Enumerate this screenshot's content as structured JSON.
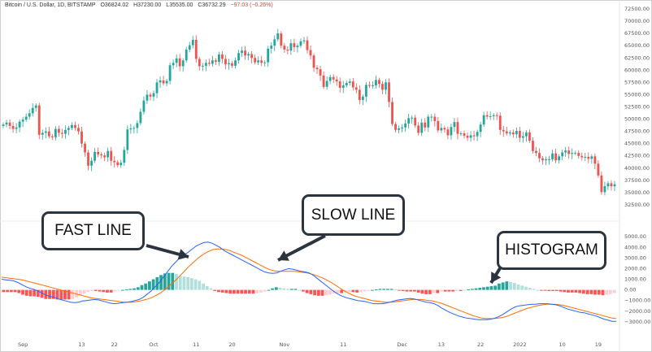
{
  "header": {
    "symbol": "Bitcoin / U.S. Dollar, 1D, BITSTAMP",
    "open": "O36824.02",
    "high": "H37230.00",
    "low": "L35535.00",
    "close": "C36732.29",
    "change": "−97.03 (−0.26%)"
  },
  "callouts": {
    "fast": "FAST LINE",
    "slow": "SLOW LINE",
    "hist": "HISTOGRAM"
  },
  "colors": {
    "up": "#26a69a",
    "down": "#ef5350",
    "hist_up_strong": "#26a69a",
    "hist_up_weak": "#b2dfdb",
    "hist_down_strong": "#ff5252",
    "hist_down_weak": "#ffcdd2",
    "fast_line": "#2962ff",
    "slow_line": "#ff6d00"
  },
  "chart_data": [
    {
      "type": "candlestick",
      "title": "",
      "x_tick_labels": [
        "Sep",
        "13",
        "22",
        "Oct",
        "11",
        "20",
        "Nov",
        "11",
        "Dec",
        "13",
        "22",
        "2022",
        "10",
        "19"
      ],
      "y_tick_labels": [
        "32500.00",
        "35000.00",
        "37500.00",
        "40000.00",
        "42500.00",
        "45000.00",
        "47500.00",
        "50000.00",
        "52500.00",
        "55000.00",
        "57500.00",
        "60000.00",
        "62500.00",
        "65000.00",
        "67500.00",
        "70000.00",
        "72500.00"
      ],
      "ylim": [
        31500,
        73000
      ],
      "close": [
        48900,
        49300,
        48600,
        48000,
        48300,
        49500,
        49900,
        50500,
        51200,
        52300,
        52800,
        46800,
        47200,
        47500,
        46500,
        46300,
        48000,
        47200,
        47000,
        47800,
        48200,
        48800,
        48200,
        47500,
        45000,
        43200,
        40500,
        41500,
        43300,
        42800,
        42600,
        42200,
        43500,
        41500,
        41200,
        40600,
        41100,
        43700,
        47900,
        48100,
        48200,
        49200,
        51500,
        53800,
        55000,
        54600,
        55300,
        57500,
        57900,
        57300,
        57800,
        61000,
        61500,
        62400,
        60800,
        62000,
        64200,
        65100,
        66200,
        62300,
        60800,
        60900,
        61500,
        61300,
        62000,
        61700,
        63200,
        62300,
        61200,
        61400,
        60900,
        62000,
        63500,
        64000,
        63000,
        63300,
        62500,
        61600,
        62000,
        61500,
        61600,
        64400,
        65000,
        66300,
        67500,
        65000,
        64200,
        64000,
        65500,
        64700,
        65000,
        65900,
        66100,
        64100,
        63000,
        60500,
        60200,
        58900,
        56600,
        57800,
        58600,
        58100,
        57700,
        56400,
        56900,
        57400,
        57700,
        56500,
        56000,
        53900,
        54600,
        57000,
        56800,
        56900,
        58000,
        57200,
        56000,
        57500,
        53500,
        49000,
        47800,
        48100,
        48300,
        49100,
        50200,
        50300,
        48700,
        47200,
        49300,
        48300,
        50500,
        50500,
        49600,
        47700,
        48200,
        47900,
        46700,
        48400,
        49400,
        47000,
        47100,
        46600,
        46200,
        46700,
        46500,
        47400,
        48900,
        50800,
        50500,
        50600,
        50800,
        50700,
        47800,
        47500,
        47100,
        47300,
        46900,
        47600,
        46200,
        46500,
        47300,
        45600,
        43500,
        43100,
        42000,
        41600,
        41800,
        41800,
        43000,
        41600,
        42400,
        43200,
        43600,
        42900,
        43100,
        43100,
        42500,
        42200,
        42300,
        41900,
        42400,
        40900,
        38500,
        35100,
        36300,
        36900,
        36300,
        36700
      ]
    },
    {
      "type": "line",
      "title": "",
      "y_tick_labels": [
        "5000.00",
        "4000.00",
        "3000.00",
        "2000.00",
        "1000.00",
        "0.00",
        "−1000.00",
        "−2000.00",
        "−3000.00"
      ],
      "ylim": [
        -3700,
        5400
      ],
      "series": [
        {
          "values": [
            1000,
            950,
            900,
            850,
            700,
            500,
            300,
            150,
            50,
            -100,
            -300,
            -500,
            -600,
            -700,
            -850,
            -950,
            -1050,
            -1150,
            -1200,
            -1150,
            -1050,
            -1000,
            -950,
            -900,
            -950,
            -1050,
            -1150,
            -1250,
            -1300,
            -1250,
            -1200,
            -1150,
            -1100,
            -1000,
            -900,
            -700,
            -400,
            -100,
            300,
            700,
            1200,
            1700,
            2200,
            2600,
            3000,
            3300,
            3500,
            3800,
            4100,
            4300,
            4450,
            4500,
            4400,
            4200,
            4000,
            3700,
            3500,
            3300,
            3100,
            2900,
            2700,
            2500,
            2300,
            2100,
            1900,
            1700,
            1600,
            1550,
            1600,
            1750,
            1900,
            2000,
            1950,
            1850,
            1750,
            1700,
            1600,
            1400,
            1100,
            800,
            500,
            200,
            -100,
            -350,
            -550,
            -700,
            -800,
            -900,
            -1000,
            -1050,
            -1100,
            -1200,
            -1300,
            -1300,
            -1300,
            -1250,
            -1150,
            -1050,
            -950,
            -900,
            -850,
            -800,
            -850,
            -950,
            -1050,
            -1150,
            -1200,
            -1300,
            -1500,
            -1750,
            -1950,
            -2150,
            -2300,
            -2450,
            -2550,
            -2650,
            -2700,
            -2750,
            -2800,
            -2800,
            -2800,
            -2750,
            -2650,
            -2500,
            -2300,
            -2050,
            -1800,
            -1600,
            -1500,
            -1450,
            -1400,
            -1350,
            -1350,
            -1300,
            -1300,
            -1300,
            -1350,
            -1400,
            -1500,
            -1650,
            -1800,
            -1900,
            -2000,
            -2100,
            -2150,
            -2250,
            -2350,
            -2450,
            -2600,
            -2750,
            -2850,
            -2950,
            -2950
          ]
        },
        {
          "values": [
            1200,
            1150,
            1100,
            1050,
            1000,
            950,
            850,
            750,
            650,
            550,
            450,
            350,
            250,
            150,
            50,
            -50,
            -150,
            -250,
            -350,
            -450,
            -550,
            -650,
            -750,
            -800,
            -850,
            -900,
            -950,
            -1000,
            -1050,
            -1100,
            -1150,
            -1150,
            -1150,
            -1100,
            -1050,
            -950,
            -850,
            -700,
            -500,
            -300,
            0,
            300,
            650,
            1000,
            1400,
            1800,
            2200,
            2550,
            2900,
            3200,
            3450,
            3650,
            3800,
            3850,
            3850,
            3800,
            3700,
            3550,
            3400,
            3250,
            3050,
            2850,
            2650,
            2450,
            2250,
            2050,
            1900,
            1800,
            1750,
            1750,
            1750,
            1750,
            1750,
            1700,
            1650,
            1600,
            1500,
            1400,
            1250,
            1100,
            900,
            700,
            450,
            200,
            -50,
            -250,
            -450,
            -600,
            -700,
            -800,
            -900,
            -1000,
            -1050,
            -1100,
            -1150,
            -1150,
            -1150,
            -1100,
            -1050,
            -1000,
            -950,
            -900,
            -900,
            -900,
            -950,
            -1000,
            -1050,
            -1150,
            -1250,
            -1400,
            -1550,
            -1700,
            -1850,
            -2000,
            -2150,
            -2300,
            -2450,
            -2550,
            -2650,
            -2700,
            -2700,
            -2700,
            -2650,
            -2600,
            -2500,
            -2350,
            -2200,
            -2050,
            -1900,
            -1750,
            -1650,
            -1550,
            -1450,
            -1400,
            -1350,
            -1350,
            -1350,
            -1400,
            -1450,
            -1550,
            -1650,
            -1750,
            -1850,
            -1950,
            -2050,
            -2150,
            -2250,
            -2350,
            -2450,
            -2550,
            -2650,
            -2700
          ]
        }
      ],
      "histogram": [
        -200,
        -200,
        -200,
        -200,
        -300,
        -450,
        -550,
        -600,
        -600,
        -650,
        -750,
        -850,
        -850,
        -850,
        -900,
        -900,
        -900,
        -900,
        -850,
        -700,
        -500,
        -350,
        -200,
        -100,
        -100,
        -150,
        -200,
        -250,
        -250,
        -150,
        -50,
        0,
        50,
        100,
        150,
        250,
        450,
        600,
        800,
        1000,
        1200,
        1400,
        1550,
        1600,
        1600,
        1500,
        1300,
        1250,
        1200,
        1100,
        1000,
        850,
        600,
        350,
        150,
        -100,
        -200,
        -250,
        -300,
        -350,
        -350,
        -350,
        -350,
        -350,
        -350,
        -350,
        -300,
        -250,
        -150,
        0,
        150,
        250,
        200,
        150,
        100,
        100,
        100,
        0,
        -150,
        -300,
        -400,
        -500,
        -550,
        -550,
        -500,
        -450,
        -350,
        -300,
        -300,
        -250,
        -200,
        -200,
        -250,
        -200,
        -150,
        -100,
        0,
        50,
        100,
        100,
        100,
        100,
        50,
        -50,
        -100,
        -150,
        -150,
        -150,
        -250,
        -350,
        -400,
        -400,
        -300,
        -300,
        -150,
        -150,
        -150,
        -150,
        -100,
        -100,
        -50,
        50,
        100,
        150,
        200,
        250,
        300,
        350,
        400,
        600,
        700,
        800,
        750,
        650,
        500,
        400,
        300,
        200,
        100,
        0,
        -50,
        -50,
        -100,
        -100,
        -100,
        -150,
        -200,
        -250,
        -250,
        -250,
        -300,
        -350,
        -400,
        -400,
        -450,
        -450,
        -500,
        -450,
        -400,
        -300
      ]
    }
  ]
}
